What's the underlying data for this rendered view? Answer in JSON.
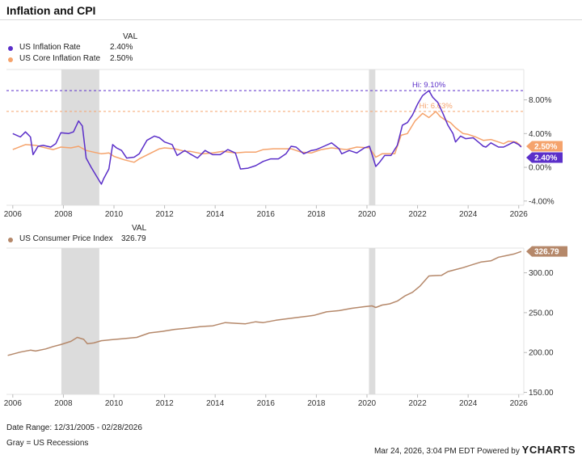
{
  "title": "Inflation and CPI",
  "top_legend": {
    "header": "VAL",
    "items": [
      {
        "label": "US Inflation Rate",
        "value": "2.40%",
        "color": "#5b2fc9"
      },
      {
        "label": "US Core Inflation Rate",
        "value": "2.50%",
        "color": "#f5a36c"
      }
    ]
  },
  "bottom_legend": {
    "header": "VAL",
    "items": [
      {
        "label": "US Consumer Price Index",
        "value": "326.79",
        "color": "#b5886a"
      }
    ]
  },
  "footer": {
    "date_range": "Date Range: 12/31/2005 - 02/28/2026",
    "recessions_note": "Gray = US Recessions",
    "timestamp": "Mar 24, 2026, 3:04 PM EDT Powered by",
    "brand": "YCHARTS"
  },
  "chart_data": [
    {
      "type": "line",
      "title": "Inflation and CPI",
      "x_ticks": [
        "2006",
        "2008",
        "2010",
        "2012",
        "2014",
        "2016",
        "2018",
        "2020",
        "2022",
        "2024",
        "2026"
      ],
      "y_ticks": [
        "8.00%",
        "4.00%",
        "0.00%",
        "-4.00%"
      ],
      "y_tick_values": [
        8,
        4,
        0,
        -4
      ],
      "xlim": [
        2005.75,
        2026.2
      ],
      "ylim": [
        -4.5,
        11.6
      ],
      "recessions": [
        [
          2007.92,
          2009.42
        ],
        [
          2020.08,
          2020.33
        ]
      ],
      "highs": [
        {
          "series": "US Inflation Rate",
          "label": "Hi: 9.10%",
          "value": 9.1,
          "x": 2022.45
        },
        {
          "series": "US Core Inflation Rate",
          "label": "Hi: 6.63%",
          "value": 6.63,
          "x": 2022.72
        }
      ],
      "end_labels": [
        {
          "series": "US Core Inflation Rate",
          "label": "2.50%",
          "value": 2.5
        },
        {
          "series": "US Inflation Rate",
          "label": "2.40%",
          "value": 2.4
        }
      ],
      "series": [
        {
          "name": "US Inflation Rate",
          "color": "#5b2fc9",
          "points": [
            [
              2006.0,
              4.0
            ],
            [
              2006.3,
              3.6
            ],
            [
              2006.5,
              4.2
            ],
            [
              2006.7,
              3.6
            ],
            [
              2006.8,
              1.5
            ],
            [
              2007.0,
              2.5
            ],
            [
              2007.2,
              2.6
            ],
            [
              2007.5,
              2.4
            ],
            [
              2007.7,
              2.8
            ],
            [
              2007.9,
              4.1
            ],
            [
              2008.2,
              4.0
            ],
            [
              2008.4,
              4.2
            ],
            [
              2008.6,
              5.5
            ],
            [
              2008.75,
              4.9
            ],
            [
              2008.9,
              1.1
            ],
            [
              2009.1,
              0.0
            ],
            [
              2009.3,
              -1.0
            ],
            [
              2009.5,
              -2.0
            ],
            [
              2009.6,
              -1.3
            ],
            [
              2009.8,
              -0.2
            ],
            [
              2009.95,
              2.7
            ],
            [
              2010.1,
              2.3
            ],
            [
              2010.3,
              2.0
            ],
            [
              2010.5,
              1.1
            ],
            [
              2010.8,
              1.2
            ],
            [
              2011.0,
              1.6
            ],
            [
              2011.3,
              3.2
            ],
            [
              2011.6,
              3.7
            ],
            [
              2011.8,
              3.5
            ],
            [
              2012.0,
              3.0
            ],
            [
              2012.3,
              2.7
            ],
            [
              2012.5,
              1.4
            ],
            [
              2012.8,
              2.0
            ],
            [
              2013.0,
              1.6
            ],
            [
              2013.3,
              1.1
            ],
            [
              2013.6,
              2.0
            ],
            [
              2013.9,
              1.5
            ],
            [
              2014.2,
              1.5
            ],
            [
              2014.5,
              2.1
            ],
            [
              2014.8,
              1.7
            ],
            [
              2015.0,
              -0.2
            ],
            [
              2015.3,
              -0.1
            ],
            [
              2015.6,
              0.2
            ],
            [
              2015.9,
              0.7
            ],
            [
              2016.2,
              1.0
            ],
            [
              2016.5,
              1.0
            ],
            [
              2016.8,
              1.6
            ],
            [
              2017.0,
              2.5
            ],
            [
              2017.2,
              2.4
            ],
            [
              2017.5,
              1.6
            ],
            [
              2017.8,
              2.0
            ],
            [
              2018.0,
              2.1
            ],
            [
              2018.3,
              2.5
            ],
            [
              2018.6,
              2.9
            ],
            [
              2018.9,
              2.2
            ],
            [
              2019.0,
              1.6
            ],
            [
              2019.3,
              2.0
            ],
            [
              2019.6,
              1.7
            ],
            [
              2019.9,
              2.3
            ],
            [
              2020.1,
              2.5
            ],
            [
              2020.35,
              0.1
            ],
            [
              2020.5,
              0.6
            ],
            [
              2020.7,
              1.4
            ],
            [
              2020.95,
              1.4
            ],
            [
              2021.2,
              2.6
            ],
            [
              2021.4,
              5.0
            ],
            [
              2021.6,
              5.3
            ],
            [
              2021.8,
              6.2
            ],
            [
              2022.0,
              7.5
            ],
            [
              2022.2,
              8.5
            ],
            [
              2022.45,
              9.1
            ],
            [
              2022.6,
              8.3
            ],
            [
              2022.8,
              7.7
            ],
            [
              2023.0,
              6.4
            ],
            [
              2023.2,
              5.0
            ],
            [
              2023.4,
              4.0
            ],
            [
              2023.5,
              3.0
            ],
            [
              2023.7,
              3.7
            ],
            [
              2023.9,
              3.4
            ],
            [
              2024.2,
              3.5
            ],
            [
              2024.4,
              3.0
            ],
            [
              2024.6,
              2.5
            ],
            [
              2024.7,
              2.4
            ],
            [
              2024.9,
              2.9
            ],
            [
              2025.2,
              2.4
            ],
            [
              2025.4,
              2.4
            ],
            [
              2025.6,
              2.7
            ],
            [
              2025.8,
              3.0
            ],
            [
              2026.0,
              2.7
            ],
            [
              2026.1,
              2.4
            ]
          ]
        },
        {
          "name": "US Core Inflation Rate",
          "color": "#f5a36c",
          "points": [
            [
              2006.0,
              2.1
            ],
            [
              2006.5,
              2.7
            ],
            [
              2006.9,
              2.6
            ],
            [
              2007.3,
              2.3
            ],
            [
              2007.6,
              2.1
            ],
            [
              2007.9,
              2.4
            ],
            [
              2008.3,
              2.3
            ],
            [
              2008.6,
              2.5
            ],
            [
              2008.9,
              2.0
            ],
            [
              2009.2,
              1.8
            ],
            [
              2009.5,
              1.6
            ],
            [
              2009.8,
              1.7
            ],
            [
              2010.0,
              1.3
            ],
            [
              2010.4,
              0.9
            ],
            [
              2010.8,
              0.6
            ],
            [
              2011.0,
              1.0
            ],
            [
              2011.4,
              1.6
            ],
            [
              2011.8,
              2.2
            ],
            [
              2012.0,
              2.3
            ],
            [
              2012.4,
              2.2
            ],
            [
              2012.8,
              1.9
            ],
            [
              2013.0,
              1.9
            ],
            [
              2013.5,
              1.6
            ],
            [
              2013.9,
              1.7
            ],
            [
              2014.3,
              1.9
            ],
            [
              2014.8,
              1.7
            ],
            [
              2015.2,
              1.8
            ],
            [
              2015.6,
              1.8
            ],
            [
              2015.9,
              2.1
            ],
            [
              2016.3,
              2.2
            ],
            [
              2016.7,
              2.2
            ],
            [
              2017.0,
              2.2
            ],
            [
              2017.4,
              1.8
            ],
            [
              2017.8,
              1.7
            ],
            [
              2018.2,
              2.1
            ],
            [
              2018.6,
              2.3
            ],
            [
              2018.9,
              2.2
            ],
            [
              2019.2,
              2.1
            ],
            [
              2019.6,
              2.4
            ],
            [
              2020.1,
              2.3
            ],
            [
              2020.35,
              1.2
            ],
            [
              2020.6,
              1.6
            ],
            [
              2020.9,
              1.6
            ],
            [
              2021.1,
              1.6
            ],
            [
              2021.35,
              3.8
            ],
            [
              2021.6,
              4.0
            ],
            [
              2021.9,
              5.5
            ],
            [
              2022.2,
              6.4
            ],
            [
              2022.45,
              5.9
            ],
            [
              2022.72,
              6.63
            ],
            [
              2022.9,
              6.0
            ],
            [
              2023.1,
              5.6
            ],
            [
              2023.3,
              5.3
            ],
            [
              2023.5,
              4.7
            ],
            [
              2023.8,
              4.0
            ],
            [
              2024.0,
              3.9
            ],
            [
              2024.3,
              3.6
            ],
            [
              2024.6,
              3.2
            ],
            [
              2024.9,
              3.3
            ],
            [
              2025.1,
              3.1
            ],
            [
              2025.4,
              2.8
            ],
            [
              2025.6,
              3.1
            ],
            [
              2025.9,
              3.0
            ],
            [
              2026.1,
              2.5
            ]
          ]
        }
      ]
    },
    {
      "type": "line",
      "title": "US Consumer Price Index",
      "x_ticks": [
        "2006",
        "2008",
        "2010",
        "2012",
        "2014",
        "2016",
        "2018",
        "2020",
        "2022",
        "2024",
        "2026"
      ],
      "y_ticks": [
        "300.00",
        "250.00",
        "200.00",
        "150.00"
      ],
      "y_tick_values": [
        300,
        250,
        200,
        150
      ],
      "xlim": [
        2005.75,
        2026.2
      ],
      "ylim": [
        147.5,
        331
      ],
      "recessions": [
        [
          2007.92,
          2009.42
        ],
        [
          2020.08,
          2020.33
        ]
      ],
      "end_labels": [
        {
          "series": "US Consumer Price Index",
          "label": "326.79",
          "value": 326.79
        }
      ],
      "series": [
        {
          "name": "US Consumer Price Index",
          "color": "#b5886a",
          "points": [
            [
              2005.8,
              196.4
            ],
            [
              2006.3,
              200.5
            ],
            [
              2006.7,
              203.0
            ],
            [
              2006.9,
              201.8
            ],
            [
              2007.3,
              204.5
            ],
            [
              2007.6,
              207.5
            ],
            [
              2007.9,
              210.0
            ],
            [
              2008.3,
              214.0
            ],
            [
              2008.55,
              219.0
            ],
            [
              2008.8,
              216.5
            ],
            [
              2008.95,
              211.0
            ],
            [
              2009.2,
              212.0
            ],
            [
              2009.5,
              214.8
            ],
            [
              2009.9,
              216.0
            ],
            [
              2010.4,
              217.5
            ],
            [
              2010.9,
              219.0
            ],
            [
              2011.4,
              224.5
            ],
            [
              2011.9,
              226.5
            ],
            [
              2012.4,
              229.0
            ],
            [
              2012.9,
              230.5
            ],
            [
              2013.4,
              232.5
            ],
            [
              2013.9,
              233.5
            ],
            [
              2014.4,
              237.5
            ],
            [
              2014.9,
              236.5
            ],
            [
              2015.2,
              236.0
            ],
            [
              2015.6,
              238.5
            ],
            [
              2015.9,
              237.5
            ],
            [
              2016.4,
              240.5
            ],
            [
              2016.9,
              242.5
            ],
            [
              2017.4,
              244.5
            ],
            [
              2017.9,
              246.5
            ],
            [
              2018.4,
              251.0
            ],
            [
              2018.9,
              252.5
            ],
            [
              2019.4,
              255.5
            ],
            [
              2019.9,
              257.5
            ],
            [
              2020.2,
              258.5
            ],
            [
              2020.35,
              256.5
            ],
            [
              2020.6,
              259.5
            ],
            [
              2020.9,
              261.0
            ],
            [
              2021.2,
              264.5
            ],
            [
              2021.5,
              271.0
            ],
            [
              2021.8,
              275.5
            ],
            [
              2022.1,
              283.5
            ],
            [
              2022.45,
              296.0
            ],
            [
              2022.7,
              296.5
            ],
            [
              2022.95,
              296.8
            ],
            [
              2023.2,
              301.5
            ],
            [
              2023.5,
              304.0
            ],
            [
              2023.8,
              306.5
            ],
            [
              2024.1,
              309.5
            ],
            [
              2024.5,
              313.5
            ],
            [
              2024.9,
              315.0
            ],
            [
              2025.2,
              319.5
            ],
            [
              2025.5,
              321.5
            ],
            [
              2025.8,
              323.5
            ],
            [
              2026.1,
              326.79
            ]
          ]
        }
      ]
    }
  ]
}
